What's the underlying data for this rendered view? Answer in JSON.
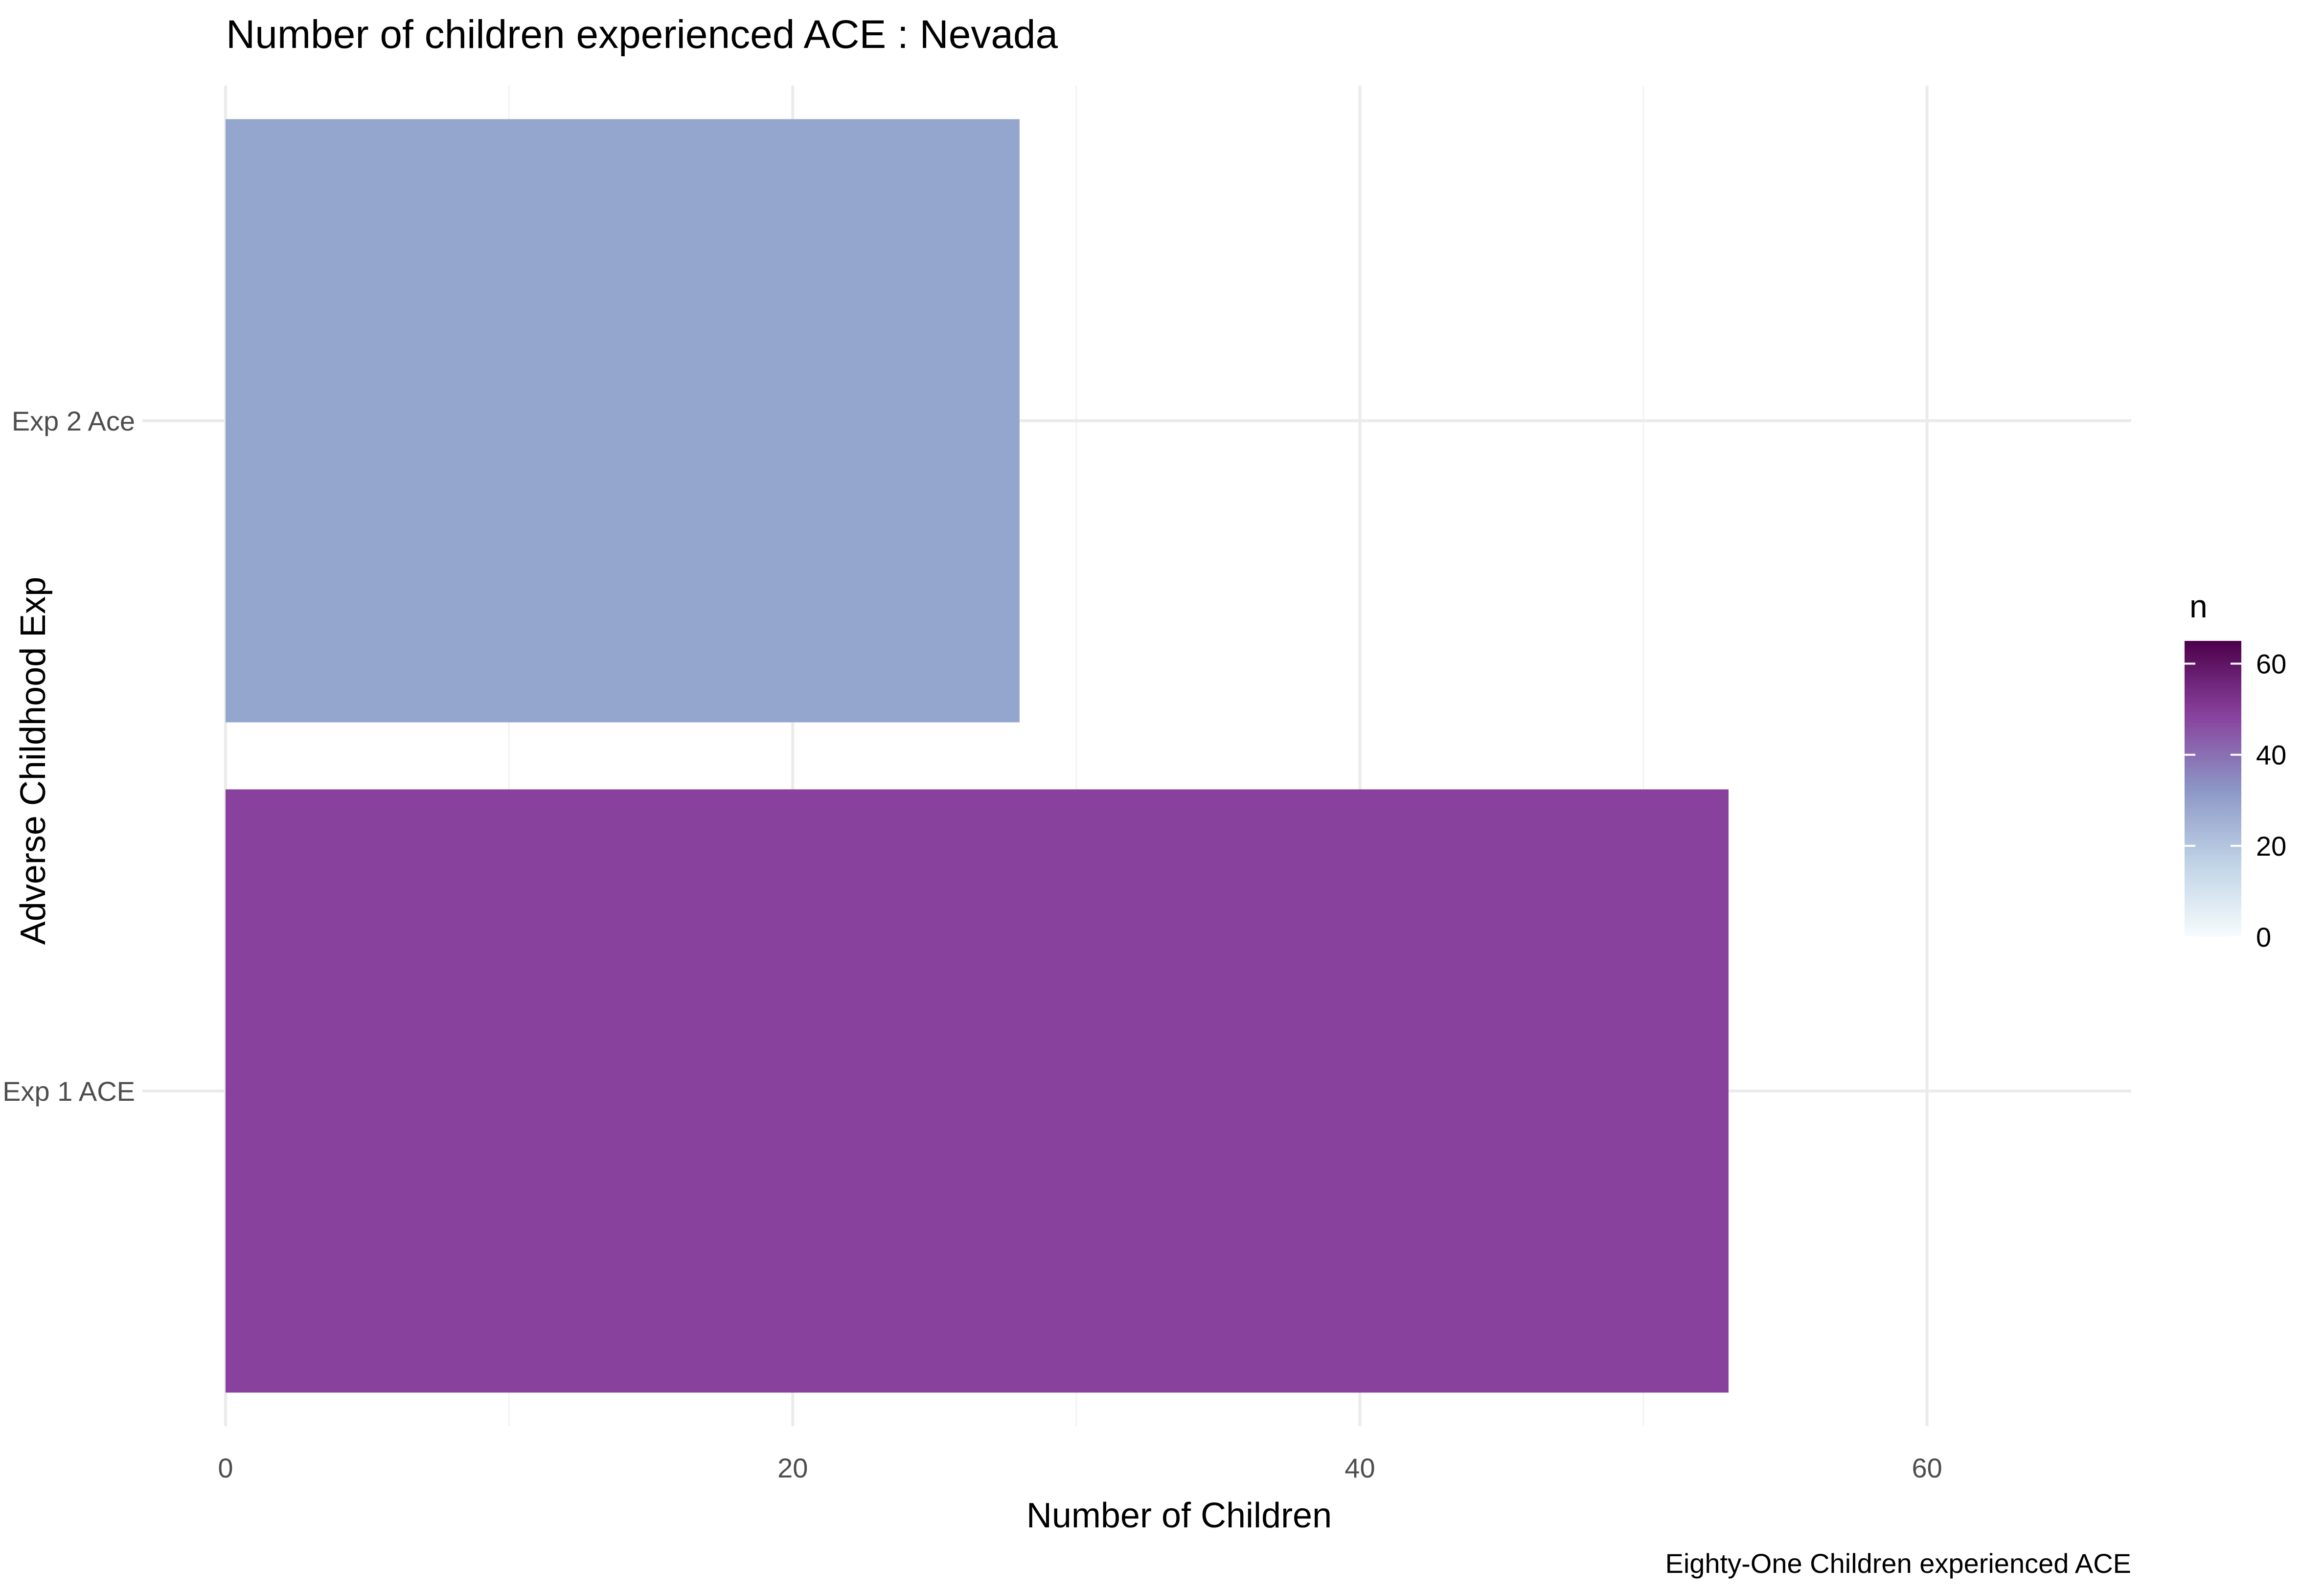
{
  "chart_data": {
    "type": "bar",
    "orientation": "horizontal",
    "title": "Number of children experienced ACE : Nevada",
    "xlabel": "Number of Children",
    "ylabel": "Adverse Childhood Exp",
    "caption": "Eighty-One Children experienced ACE",
    "categories": [
      "Exp 1 ACE",
      "Exp 2 Ace"
    ],
    "values": [
      53,
      28
    ],
    "xlim": [
      0,
      67.2
    ],
    "x_ticks": [
      0,
      20,
      40,
      60
    ],
    "x_tick_labels": [
      "0",
      "20",
      "40",
      "60"
    ],
    "grid": true,
    "legend": {
      "title": "n",
      "position": "right",
      "type": "colorbar",
      "range": [
        0,
        65
      ],
      "ticks": [
        0,
        20,
        40,
        60
      ],
      "tick_labels": [
        "0",
        "20",
        "40",
        "60"
      ],
      "colors": [
        "#f7fcfd",
        "#bfd3e6",
        "#8c96c6",
        "#88419d",
        "#4d004b"
      ]
    },
    "bar_colors": [
      "#88419d",
      "#95a6ce"
    ]
  }
}
